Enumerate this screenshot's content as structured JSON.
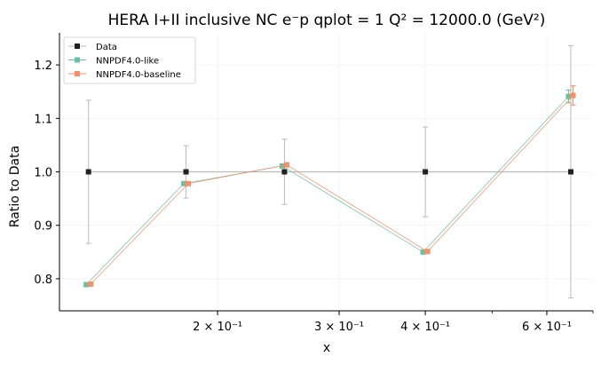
{
  "chart_data": {
    "type": "line",
    "title": "HERA I+II inclusive NC e⁻p qplot = 1 Q² = 12000.0 (GeV²)",
    "xlabel": "x",
    "ylabel": "Ratio to Data",
    "x_scale": "log",
    "xlim": [
      0.118,
      0.7
    ],
    "ylim": [
      0.74,
      1.26
    ],
    "x_ticks": [
      {
        "value": 0.2,
        "label": "2 × 10⁻¹"
      },
      {
        "value": 0.3,
        "label": "3 × 10⁻¹"
      },
      {
        "value": 0.4,
        "label": "4 × 10⁻¹"
      },
      {
        "value": 0.6,
        "label": "6 × 10⁻¹"
      }
    ],
    "y_ticks": [
      {
        "value": 0.8,
        "label": "0.8"
      },
      {
        "value": 0.9,
        "label": "0.9"
      },
      {
        "value": 1.0,
        "label": "1.0"
      },
      {
        "value": 1.1,
        "label": "1.1"
      },
      {
        "value": 1.2,
        "label": "1.2"
      }
    ],
    "grid": true,
    "legend_position": "top-left",
    "series": [
      {
        "name": "Data",
        "color": "#222222",
        "line_color": "#bbbbbb",
        "x": [
          0.13,
          0.18,
          0.25,
          0.4,
          0.65
        ],
        "y": [
          1.0,
          1.0,
          1.0,
          1.0,
          1.0
        ],
        "err": [
          0.134,
          0.049,
          0.061,
          0.084,
          0.236
        ]
      },
      {
        "name": "NNPDF4.0-like",
        "color": "#66c2a5",
        "x": [
          0.13,
          0.18,
          0.25,
          0.4,
          0.65
        ],
        "y": [
          0.789,
          0.978,
          1.011,
          0.85,
          1.141
        ],
        "err": [
          0.002,
          0.003,
          0.003,
          0.003,
          0.012
        ]
      },
      {
        "name": "NNPDF4.0-baseline",
        "color": "#fc8d62",
        "x": [
          0.13,
          0.18,
          0.25,
          0.4,
          0.65
        ],
        "y": [
          0.79,
          0.978,
          1.013,
          0.851,
          1.143
        ],
        "err": [
          0.002,
          0.003,
          0.003,
          0.003,
          0.018
        ]
      }
    ]
  }
}
